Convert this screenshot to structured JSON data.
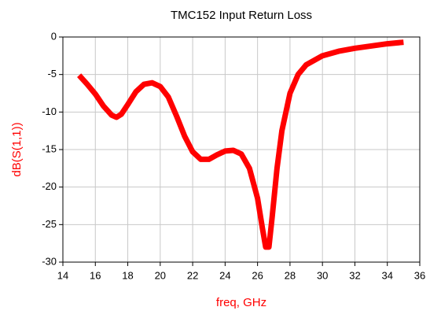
{
  "chart_data": {
    "type": "line",
    "title": "TMC152 Input Return Loss",
    "x_label": "freq, GHz",
    "y_label": "dB(S(1,1))",
    "x": [
      15,
      15.5,
      16,
      16.5,
      17,
      17.3,
      17.6,
      18,
      18.5,
      19,
      19.5,
      20,
      20.5,
      21,
      21.5,
      22,
      22.5,
      23,
      23.5,
      24,
      24.5,
      25,
      25.5,
      26,
      26.3,
      26.5,
      26.7,
      26.9,
      27.2,
      27.5,
      28,
      28.5,
      29,
      30,
      31,
      32,
      33,
      34,
      35
    ],
    "series": [
      {
        "name": "dB(S(1,1))",
        "color": "#ff0000",
        "values": [
          -5.1,
          -6.3,
          -7.6,
          -9.2,
          -10.4,
          -10.7,
          -10.3,
          -9,
          -7.3,
          -6.3,
          -6.1,
          -6.6,
          -8,
          -10.5,
          -13.2,
          -15.3,
          -16.3,
          -16.3,
          -15.7,
          -15.2,
          -15.1,
          -15.6,
          -17.5,
          -21.5,
          -25.5,
          -28,
          -28,
          -24,
          -17.5,
          -12.5,
          -7.5,
          -5,
          -3.7,
          -2.5,
          -1.9,
          -1.5,
          -1.2,
          -0.9,
          -0.7
        ]
      }
    ],
    "xlim": [
      14,
      36
    ],
    "xticks": [
      14,
      16,
      18,
      20,
      22,
      24,
      26,
      28,
      30,
      32,
      34,
      36
    ],
    "ylim": [
      -30,
      0
    ],
    "yticks": [
      -30,
      -25,
      -20,
      -15,
      -10,
      -5,
      0
    ],
    "grid": true
  }
}
